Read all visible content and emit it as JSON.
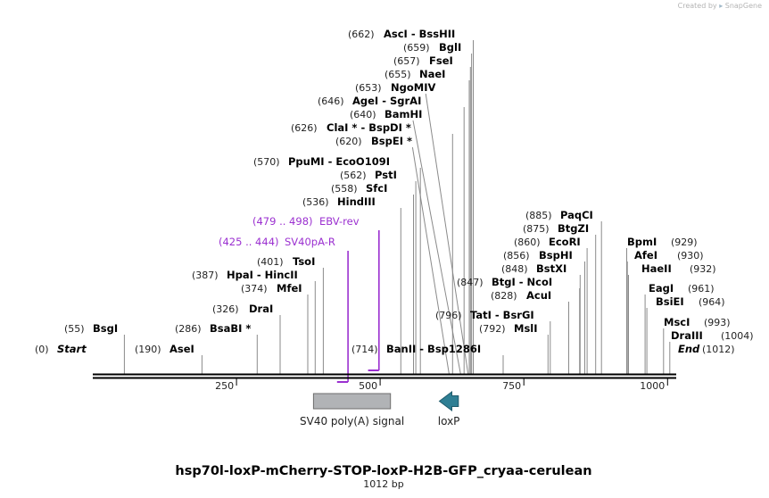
{
  "credit": {
    "prefix": "Created by",
    "brand": "SnapGene"
  },
  "title": "hsp70l-loxP-mCherry-STOP-loxP-H2B-GFP_cryaa-cerulean",
  "length_label": "1012 bp",
  "sequence_length": 1012,
  "axis_ticks": [
    250,
    500,
    750,
    1000
  ],
  "colors": {
    "primer": "#9b30d0",
    "feature_polyA": "#b1b3b6",
    "feature_loxP": "#2f7f94"
  },
  "enzymes": [
    {
      "pos": 0,
      "pos_label": "(0)",
      "name": "Start",
      "style": "italic"
    },
    {
      "pos": 55,
      "pos_label": "(55)",
      "name": "BsgI"
    },
    {
      "pos": 190,
      "pos_label": "(190)",
      "name": "AseI"
    },
    {
      "pos": 286,
      "pos_label": "(286)",
      "name": "BsaBI *"
    },
    {
      "pos": 326,
      "pos_label": "(326)",
      "name": "DraI"
    },
    {
      "pos": 374,
      "pos_label": "(374)",
      "name": "MfeI"
    },
    {
      "pos": 387,
      "pos_label": "(387)",
      "name": "HpaI  -  HincII"
    },
    {
      "pos": 401,
      "pos_label": "(401)",
      "name": "TsoI"
    },
    {
      "pos": 536,
      "pos_label": "(536)",
      "name": "HindIII"
    },
    {
      "pos": 558,
      "pos_label": "(558)",
      "name": "SfcI"
    },
    {
      "pos": 562,
      "pos_label": "(562)",
      "name": "PstI"
    },
    {
      "pos": 570,
      "pos_label": "(570)",
      "name": "PpuMI  -  EcoO109I"
    },
    {
      "pos": 620,
      "pos_label": "(620)",
      "name": "BspEI *"
    },
    {
      "pos": 626,
      "pos_label": "(626)",
      "name": "ClaI *  -  BspDI *"
    },
    {
      "pos": 640,
      "pos_label": "(640)",
      "name": "BamHI"
    },
    {
      "pos": 646,
      "pos_label": "(646)",
      "name": "AgeI  -  SgrAI"
    },
    {
      "pos": 653,
      "pos_label": "(653)",
      "name": "NgoMIV"
    },
    {
      "pos": 655,
      "pos_label": "(655)",
      "name": "NaeI"
    },
    {
      "pos": 657,
      "pos_label": "(657)",
      "name": "FseI"
    },
    {
      "pos": 659,
      "pos_label": "(659)",
      "name": "BglI"
    },
    {
      "pos": 662,
      "pos_label": "(662)",
      "name": "AscI  -  BssHII"
    },
    {
      "pos": 714,
      "pos_label": "(714)",
      "name": "BanII  -  Bsp1286I"
    },
    {
      "pos": 792,
      "pos_label": "(792)",
      "name": "MslI"
    },
    {
      "pos": 796,
      "pos_label": "(796)",
      "name": "TatI  -  BsrGI"
    },
    {
      "pos": 828,
      "pos_label": "(828)",
      "name": "AcuI"
    },
    {
      "pos": 847,
      "pos_label": "(847)",
      "name": "BtgI  -  NcoI"
    },
    {
      "pos": 848,
      "pos_label": "(848)",
      "name": "BstXI"
    },
    {
      "pos": 856,
      "pos_label": "(856)",
      "name": "BspHI"
    },
    {
      "pos": 860,
      "pos_label": "(860)",
      "name": "EcoRI"
    },
    {
      "pos": 875,
      "pos_label": "(875)",
      "name": "BtgZI"
    },
    {
      "pos": 885,
      "pos_label": "(885)",
      "name": "PaqCI"
    },
    {
      "pos": 929,
      "pos_label": "(929)",
      "name": "BpmI"
    },
    {
      "pos": 930,
      "pos_label": "(930)",
      "name": "AfeI"
    },
    {
      "pos": 932,
      "pos_label": "(932)",
      "name": "HaeII"
    },
    {
      "pos": 961,
      "pos_label": "(961)",
      "name": "EagI"
    },
    {
      "pos": 964,
      "pos_label": "(964)",
      "name": "BsiEI"
    },
    {
      "pos": 993,
      "pos_label": "(993)",
      "name": "MscI"
    },
    {
      "pos": 1004,
      "pos_label": "(1004)",
      "name": "DraIII"
    },
    {
      "pos": 1012,
      "pos_label": "(1012)",
      "name": "End",
      "style": "italic"
    }
  ],
  "primers": [
    {
      "range_label": "(425 .. 444)",
      "name": "SV40pA-R",
      "start": 425,
      "end": 444,
      "direction": "reverse"
    },
    {
      "range_label": "(479 .. 498)",
      "name": "EBV-rev",
      "start": 479,
      "end": 498,
      "direction": "reverse"
    }
  ],
  "features": [
    {
      "name": "SV40 poly(A) signal",
      "start": 384,
      "end": 518,
      "type": "polyA"
    },
    {
      "name": "loxP",
      "start": 603,
      "end": 636,
      "type": "loxP",
      "direction": "reverse"
    }
  ]
}
